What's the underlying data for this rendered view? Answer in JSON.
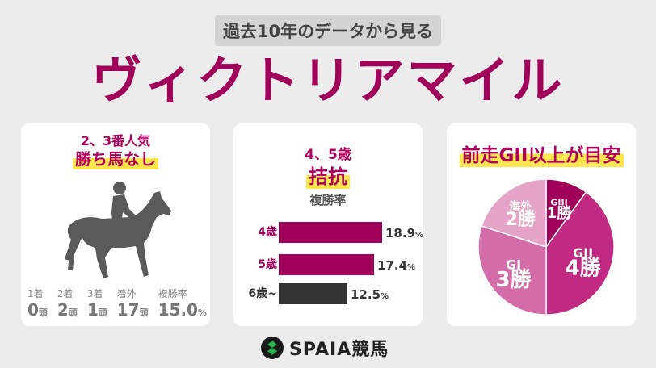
{
  "header": {
    "subtitle": "過去10年のデータから見る",
    "title": "ヴィクトリアマイル"
  },
  "card1": {
    "line1": "2、3番人気",
    "line2": "勝ち馬なし",
    "stats": [
      {
        "label": "1着",
        "value": "0",
        "unit": "頭"
      },
      {
        "label": "2着",
        "value": "2",
        "unit": "頭"
      },
      {
        "label": "3着",
        "value": "1",
        "unit": "頭"
      },
      {
        "label": "着外",
        "value": "17",
        "unit": "頭"
      },
      {
        "label": "複勝率",
        "value": "15.0",
        "unit": "%"
      }
    ]
  },
  "card2": {
    "line1": "4、5歳",
    "line2": "拮抗",
    "metric_label": "複勝率"
  },
  "chart_data": {
    "type": "bar",
    "categories": [
      "4歳",
      "5歳",
      "6歳~"
    ],
    "values": [
      18.9,
      17.4,
      12.5
    ],
    "unit": "%",
    "colors": [
      "#a0005a",
      "#a0005a",
      "#333333"
    ]
  },
  "card3": {
    "heading": "前走GII以上が目安",
    "pie": [
      {
        "label_top": "GIII",
        "label_bottom": "1勝",
        "wins": 1,
        "color": "#a0005a"
      },
      {
        "label_top": "GII",
        "label_bottom": "4勝",
        "wins": 4,
        "color": "#c02a82"
      },
      {
        "label_top": "GI",
        "label_bottom": "3勝",
        "wins": 3,
        "color": "#d36ca8"
      },
      {
        "label_top": "海外",
        "label_bottom": "2勝",
        "wins": 2,
        "color": "#e5a3c8"
      }
    ]
  },
  "footer": {
    "brand": "SPAIA競馬",
    "logo_icon": "spaia-logo-icon"
  }
}
